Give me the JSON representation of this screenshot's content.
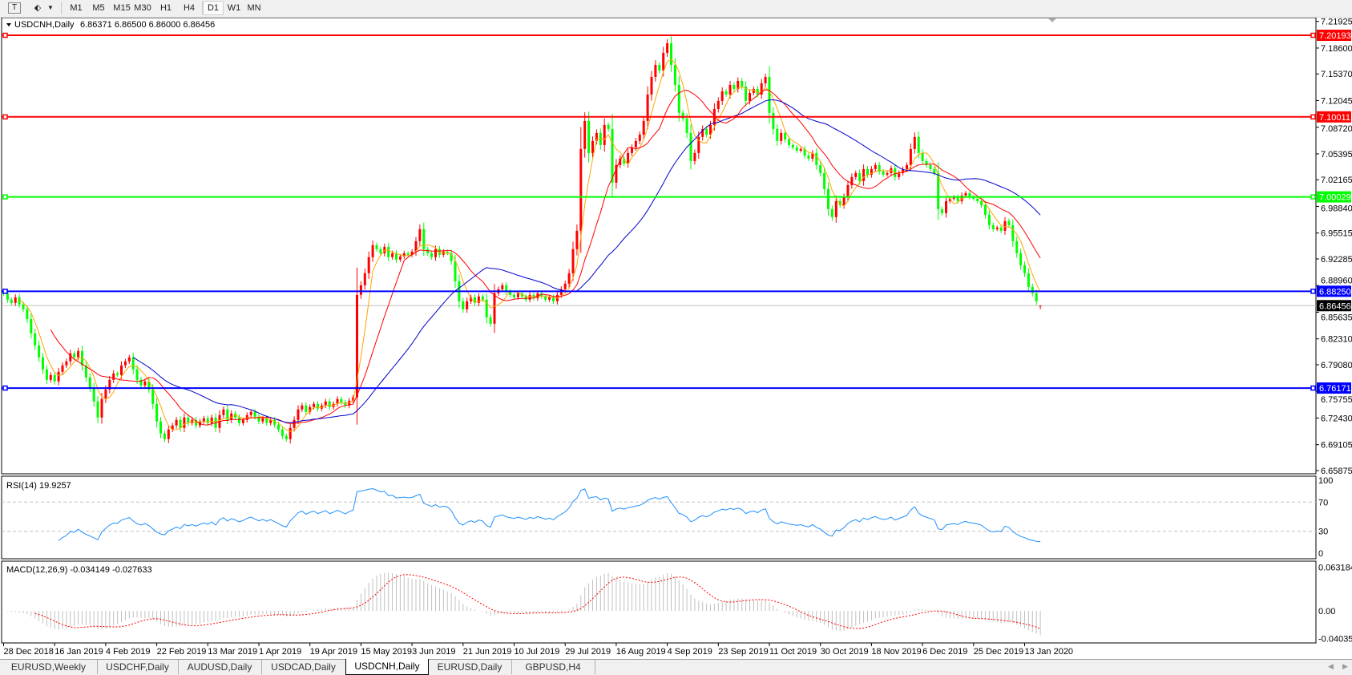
{
  "toolbar": {
    "icons": [
      "text-tool-icon",
      "drawing-shapes-icon",
      "dropdown-arrow-icon"
    ],
    "timeframes": [
      "M1",
      "M5",
      "M15",
      "M30",
      "H1",
      "H4",
      "D1",
      "W1",
      "MN"
    ],
    "active_timeframe": "D1"
  },
  "chart": {
    "title": "USDCNH,Daily",
    "ohlc": "6.86371 6.86500 6.86000 6.86456",
    "price_axis": [
      "7.21925",
      "7.18600",
      "7.15370",
      "7.12045",
      "7.08720",
      "7.05395",
      "7.02165",
      "6.98840",
      "6.95515",
      "6.92285",
      "6.88960",
      "6.85635",
      "6.82310",
      "6.79080",
      "6.75755",
      "6.72430",
      "6.69105",
      "6.65875"
    ],
    "levels": [
      {
        "price": "7.20193",
        "color": "#ff0000"
      },
      {
        "price": "7.10011",
        "color": "#ff0000"
      },
      {
        "price": "7.00029",
        "color": "#00ff00"
      },
      {
        "price": "6.88250",
        "color": "#0000ff"
      },
      {
        "price": "6.76171",
        "color": "#0000ff"
      }
    ],
    "current_price": "6.86456",
    "colors": {
      "bull": "#ff0000",
      "bear": "#00ff00",
      "ma_fast": "#ffa500",
      "ma_mid": "#ff0000",
      "ma_slow": "#0000cd",
      "rsi": "#1e90ff",
      "macd_hist": "#c0c0c0",
      "macd_signal": "#ff0000"
    }
  },
  "rsi": {
    "label": "RSI(14) 19.9257",
    "axis": [
      "100",
      "70",
      "30",
      "0"
    ]
  },
  "macd": {
    "label": "MACD(12,26,9) -0.034149 -0.027633",
    "axis": [
      "0.063184",
      "0.00",
      "-0.040355"
    ]
  },
  "tabs": [
    "EURUSD,Weekly",
    "USDCHF,Daily",
    "AUDUSD,Daily",
    "USDCAD,Daily",
    "USDCNH,Daily",
    "EURUSD,Daily",
    "GBPUSD,H4"
  ],
  "active_tab": "USDCNH,Daily",
  "chart_data": {
    "type": "candlestick",
    "title": "USDCNH,Daily",
    "x_tick_labels": [
      "28 Dec 2018",
      "16 Jan 2019",
      "4 Feb 2019",
      "22 Feb 2019",
      "13 Mar 2019",
      "1 Apr 2019",
      "19 Apr 2019",
      "15 May 2019",
      "3 Jun 2019",
      "21 Jun 2019",
      "10 Jul 2019",
      "29 Jul 2019",
      "16 Aug 2019",
      "4 Sep 2019",
      "23 Sep 2019",
      "11 Oct 2019",
      "30 Oct 2019",
      "18 Nov 2019",
      "6 Dec 2019",
      "25 Dec 2019",
      "13 Jan 2020"
    ],
    "ylim": [
      6.65875,
      7.21925
    ],
    "last_bar": {
      "open": 6.86371,
      "high": 6.865,
      "low": 6.86,
      "close": 6.86456
    },
    "closes": [
      6.88,
      6.872,
      6.868,
      6.875,
      6.866,
      6.86,
      6.848,
      6.83,
      6.815,
      6.8,
      6.785,
      6.772,
      6.778,
      6.77,
      6.782,
      6.79,
      6.795,
      6.805,
      6.8,
      6.808,
      6.79,
      6.775,
      6.762,
      6.745,
      6.725,
      6.748,
      6.76,
      6.772,
      6.78,
      6.778,
      6.79,
      6.795,
      6.8,
      6.785,
      6.772,
      6.765,
      6.77,
      6.76,
      6.742,
      6.72,
      6.705,
      6.698,
      6.71,
      6.715,
      6.722,
      6.712,
      6.725,
      6.718,
      6.722,
      6.715,
      6.72,
      6.724,
      6.718,
      6.725,
      6.712,
      6.728,
      6.735,
      6.722,
      6.73,
      6.725,
      6.718,
      6.722,
      6.728,
      6.732,
      6.726,
      6.72,
      6.724,
      6.718,
      6.722,
      6.716,
      6.71,
      6.702,
      6.698,
      6.712,
      6.722,
      6.735,
      6.74,
      6.732,
      6.738,
      6.742,
      6.736,
      6.74,
      6.745,
      6.738,
      6.742,
      6.748,
      6.744,
      6.74,
      6.746,
      6.75,
      6.878,
      6.89,
      6.905,
      6.925,
      6.94,
      6.935,
      6.93,
      6.938,
      6.925,
      6.93,
      6.922,
      6.926,
      6.93,
      6.928,
      6.932,
      6.945,
      6.96,
      6.935,
      6.93,
      6.925,
      6.935,
      6.928,
      6.932,
      6.93,
      6.92,
      6.895,
      6.87,
      6.86,
      6.87,
      6.875,
      6.868,
      6.876,
      6.872,
      6.85,
      6.842,
      6.88,
      6.885,
      6.89,
      6.882,
      6.878,
      6.875,
      6.88,
      6.876,
      6.872,
      6.878,
      6.874,
      6.88,
      6.876,
      6.872,
      6.875,
      6.87,
      6.878,
      6.885,
      6.892,
      6.905,
      6.935,
      6.958,
      7.06,
      7.095,
      7.055,
      7.07,
      7.08,
      7.065,
      7.09,
      7.085,
      7.018,
      7.04,
      7.048,
      7.042,
      7.055,
      7.062,
      7.07,
      7.078,
      7.095,
      7.128,
      7.15,
      7.165,
      7.158,
      7.18,
      7.192,
      7.165,
      7.14,
      7.105,
      7.098,
      7.08,
      7.045,
      7.055,
      7.075,
      7.085,
      7.078,
      7.09,
      7.11,
      7.12,
      7.132,
      7.128,
      7.14,
      7.135,
      7.145,
      7.138,
      7.12,
      7.13,
      7.135,
      7.128,
      7.142,
      7.15,
      7.105,
      7.085,
      7.07,
      7.08,
      7.072,
      7.065,
      7.062,
      7.058,
      7.06,
      7.052,
      7.048,
      7.055,
      7.04,
      7.03,
      7.01,
      6.985,
      6.975,
      6.995,
      6.99,
      7.0,
      7.015,
      7.025,
      7.03,
      7.02,
      7.035,
      7.028,
      7.035,
      7.04,
      7.032,
      7.028,
      7.03,
      7.036,
      7.025,
      7.03,
      7.035,
      7.04,
      7.06,
      7.075,
      7.055,
      7.045,
      7.04,
      7.035,
      7.03,
      6.985,
      6.98,
      6.995,
      6.998,
      7.0,
      6.995,
      7.002,
      7.005,
      7.0,
      6.998,
      6.995,
      6.99,
      6.978,
      6.965,
      6.96,
      6.962,
      6.958,
      6.97,
      6.965,
      6.945,
      6.93,
      6.915,
      6.905,
      6.888,
      6.88,
      6.87,
      6.86456
    ],
    "indicators": [
      "RSI(14)",
      "MACD(12,26,9)"
    ],
    "rsi_levels": [
      30,
      70
    ],
    "rsi_ylim": [
      0,
      100
    ],
    "macd_ylim": [
      -0.040355,
      0.063184
    ]
  }
}
